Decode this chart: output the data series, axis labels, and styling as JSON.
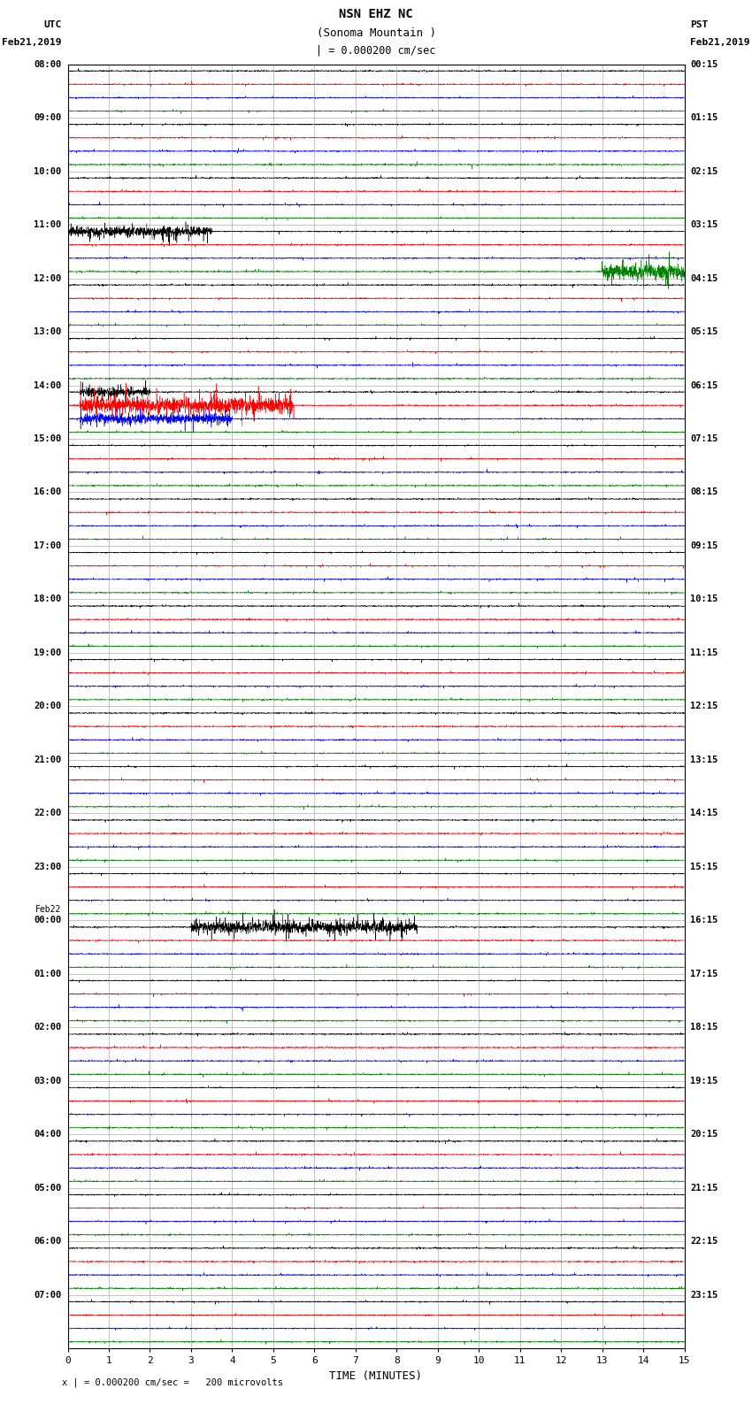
{
  "title_line1": "NSN EHZ NC",
  "title_line2": "(Sonoma Mountain )",
  "title_line3": "| = 0.000200 cm/sec",
  "left_label_line1": "UTC",
  "left_label_line2": "Feb21,2019",
  "right_label_line1": "PST",
  "right_label_line2": "Feb21,2019",
  "bottom_label": "TIME (MINUTES)",
  "scale_note": "x | = 0.000200 cm/sec =   200 microvolts",
  "total_rows": 24,
  "traces_per_row": 4,
  "trace_colors": [
    "black",
    "red",
    "blue",
    "green"
  ],
  "background_color": "#ffffff",
  "grid_color": "#999999",
  "x_ticks": [
    0,
    1,
    2,
    3,
    4,
    5,
    6,
    7,
    8,
    9,
    10,
    11,
    12,
    13,
    14,
    15
  ],
  "base_noise": 0.04,
  "special_events": [
    {
      "row": 3,
      "trace": 0,
      "xstart": 0,
      "xend": 3.5,
      "amplitude": 0.35
    },
    {
      "row": 3,
      "trace": 3,
      "xstart": 13.0,
      "xend": 15,
      "amplitude": 0.55
    },
    {
      "row": 6,
      "trace": 0,
      "xstart": 0.3,
      "xend": 2.0,
      "amplitude": 0.3
    },
    {
      "row": 6,
      "trace": 1,
      "xstart": 0.3,
      "xend": 5.5,
      "amplitude": 0.55
    },
    {
      "row": 6,
      "trace": 2,
      "xstart": 0.3,
      "xend": 4.0,
      "amplitude": 0.35
    },
    {
      "row": 16,
      "trace": 0,
      "xstart": 3.0,
      "xend": 8.5,
      "amplitude": 0.42
    }
  ],
  "hour_labels_utc": [
    "08:00",
    "09:00",
    "10:00",
    "11:00",
    "12:00",
    "13:00",
    "14:00",
    "15:00",
    "16:00",
    "17:00",
    "18:00",
    "19:00",
    "20:00",
    "21:00",
    "22:00",
    "23:00",
    "Feb22\n00:00",
    "01:00",
    "02:00",
    "03:00",
    "04:00",
    "05:00",
    "06:00",
    "07:00"
  ],
  "hour_labels_pst": [
    "00:15",
    "01:15",
    "02:15",
    "03:15",
    "04:15",
    "05:15",
    "06:15",
    "07:15",
    "08:15",
    "09:15",
    "10:15",
    "11:15",
    "12:15",
    "13:15",
    "14:15",
    "15:15",
    "16:15",
    "17:15",
    "18:15",
    "19:15",
    "20:15",
    "21:15",
    "22:15",
    "23:15"
  ]
}
